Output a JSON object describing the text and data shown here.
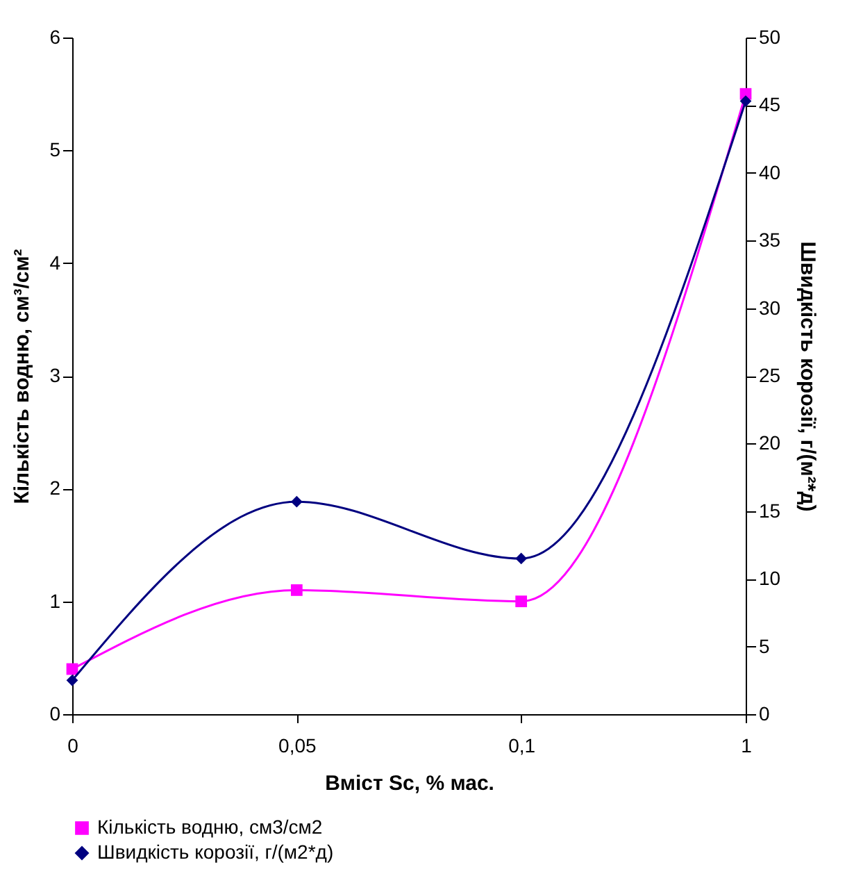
{
  "chart_data": {
    "type": "line",
    "xlabel": "Вміст Sc, % мас.",
    "ylabel": "Кількість водню, см³/см²",
    "y2label": "Швидкість корозії, г/(м²*д)",
    "categories": [
      "0",
      "0,05",
      "0,1",
      "1"
    ],
    "series": [
      {
        "name": "Кількість водню, см3/см2",
        "color": "#ff00ff",
        "marker": "square",
        "values": [
          0.4,
          1.1,
          1.0,
          5.5
        ]
      },
      {
        "name": "Швидкість корозії, г/(м2*д)",
        "color": "#000080",
        "marker": "diamond",
        "axis": "y2",
        "values": [
          2.5,
          15.7,
          11.5,
          45.3
        ]
      }
    ],
    "ylim": [
      0,
      6
    ],
    "yticks": [
      0,
      1,
      2,
      3,
      4,
      5,
      6
    ],
    "y2lim": [
      0,
      50
    ],
    "y2ticks": [
      0,
      5,
      10,
      15,
      20,
      25,
      30,
      35,
      40,
      45,
      50
    ],
    "legend": "bottom"
  }
}
